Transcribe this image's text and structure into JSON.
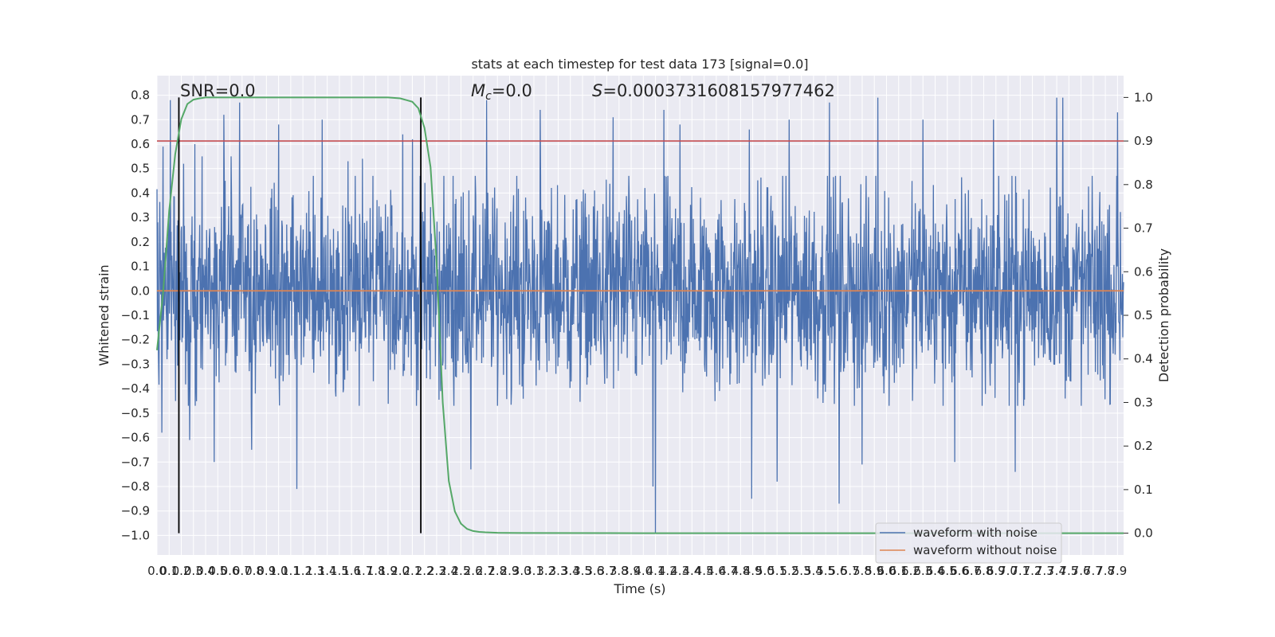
{
  "chart_data": {
    "type": "line",
    "title": "stats at each timestep for test data 173 [signal=0.0]",
    "xlabel": "Time (s)",
    "ylabel": "Whitened strain",
    "y2label": "Detection probability",
    "xlim": [
      0.0,
      7.95
    ],
    "ylim": [
      -1.08,
      0.88
    ],
    "y2lim": [
      -0.05,
      1.05
    ],
    "x_ticks": [
      "0.0",
      "0.1",
      "0.2",
      "0.3",
      "0.4",
      "0.5",
      "0.6",
      "0.7",
      "0.8",
      "0.9",
      "1.0",
      "1.1",
      "1.2",
      "1.3",
      "1.4",
      "1.5",
      "1.6",
      "1.7",
      "1.8",
      "1.9",
      "2.0",
      "2.1",
      "2.2",
      "2.3",
      "2.4",
      "2.5",
      "2.6",
      "2.7",
      "2.8",
      "2.9",
      "3.0",
      "3.1",
      "3.2",
      "3.3",
      "3.4",
      "3.5",
      "3.6",
      "3.7",
      "3.8",
      "3.9",
      "4.0",
      "4.1",
      "4.2",
      "4.3",
      "4.4",
      "4.5",
      "4.6",
      "4.7",
      "4.8",
      "4.9",
      "5.0",
      "5.1",
      "5.2",
      "5.3",
      "5.4",
      "5.5",
      "5.6",
      "5.7",
      "5.8",
      "5.9",
      "6.0",
      "6.1",
      "6.2",
      "6.3",
      "6.4",
      "6.5",
      "6.6",
      "6.7",
      "6.8",
      "6.9",
      "7.0",
      "7.1",
      "7.2",
      "7.3",
      "7.4",
      "7.5",
      "7.6",
      "7.7",
      "7.8",
      "7.9"
    ],
    "y_ticks": [
      "0.8",
      "0.7",
      "0.6",
      "0.5",
      "0.4",
      "0.3",
      "0.2",
      "0.1",
      "0.0",
      "−0.1",
      "−0.2",
      "−0.3",
      "−0.4",
      "−0.5",
      "−0.6",
      "−0.7",
      "−0.8",
      "−0.9",
      "−1.0"
    ],
    "y2_ticks": [
      "1.0",
      "0.9",
      "0.8",
      "0.7",
      "0.6",
      "0.5",
      "0.4",
      "0.3",
      "0.2",
      "0.1",
      "0.0"
    ],
    "annotations": {
      "snr": "SNR=0.0",
      "mc_symbol": "M",
      "mc_subscript": "c",
      "mc_value": "=0.0",
      "s_symbol": "S",
      "s_value": "=0.0003731608157977462"
    },
    "threshold": {
      "value": 0.9,
      "axis": "right",
      "color": "#c44e52"
    },
    "vertical_lines": [
      0.18,
      2.17
    ],
    "series": [
      {
        "name": "waveform with noise",
        "color": "#4c72b0",
        "description": "dense noise trace, bulk roughly within ±0.45, peaks to about ±0.8",
        "peaks": [
          [
            0.05,
            0.59
          ],
          [
            0.11,
            0.78
          ],
          [
            0.22,
            0.52
          ],
          [
            0.31,
            0.6
          ],
          [
            0.37,
            0.55
          ],
          [
            0.55,
            0.72
          ],
          [
            0.61,
            0.55
          ],
          [
            0.68,
            0.77
          ],
          [
            1.0,
            0.68
          ],
          [
            1.36,
            0.7
          ],
          [
            1.57,
            0.53
          ],
          [
            1.69,
            0.54
          ],
          [
            2.02,
            0.64
          ],
          [
            2.1,
            0.62
          ],
          [
            2.71,
            0.78
          ],
          [
            3.15,
            0.74
          ],
          [
            3.75,
            0.71
          ],
          [
            4.17,
            0.74
          ],
          [
            4.3,
            0.68
          ],
          [
            4.87,
            0.66
          ],
          [
            5.2,
            0.7
          ],
          [
            5.53,
            0.77
          ],
          [
            5.93,
            0.79
          ],
          [
            6.3,
            0.7
          ],
          [
            6.88,
            0.7
          ],
          [
            7.4,
            0.79
          ],
          [
            7.45,
            0.79
          ],
          [
            7.9,
            0.73
          ]
        ],
        "troughs": [
          [
            0.04,
            -0.58
          ],
          [
            0.27,
            -0.61
          ],
          [
            0.47,
            -0.7
          ],
          [
            0.78,
            -0.65
          ],
          [
            1.15,
            -0.81
          ],
          [
            2.58,
            -0.73
          ],
          [
            4.08,
            -0.8
          ],
          [
            4.1,
            -0.99
          ],
          [
            4.89,
            -0.85
          ],
          [
            5.1,
            -0.78
          ],
          [
            5.61,
            -0.87
          ],
          [
            5.8,
            -0.71
          ],
          [
            6.56,
            -0.7
          ],
          [
            7.06,
            -0.74
          ]
        ]
      },
      {
        "name": "waveform without noise",
        "color": "#dd8452",
        "x": [
          0.0,
          7.95
        ],
        "y": [
          0.0,
          0.0
        ]
      },
      {
        "name": "detection probability",
        "color": "#55a868",
        "axis": "right",
        "x": [
          0.0,
          0.05,
          0.1,
          0.15,
          0.2,
          0.25,
          0.3,
          0.35,
          0.4,
          0.45,
          0.5,
          0.8,
          1.2,
          1.6,
          1.9,
          2.0,
          2.1,
          2.15,
          2.2,
          2.25,
          2.3,
          2.35,
          2.4,
          2.45,
          2.5,
          2.55,
          2.6,
          2.65,
          2.7,
          2.8,
          3.0,
          4.0,
          6.0,
          7.95
        ],
        "y": [
          0.42,
          0.55,
          0.74,
          0.87,
          0.95,
          0.985,
          0.995,
          0.998,
          1.0,
          1.0,
          1.0,
          1.0,
          1.0,
          1.0,
          1.0,
          0.998,
          0.99,
          0.975,
          0.93,
          0.84,
          0.62,
          0.3,
          0.12,
          0.05,
          0.022,
          0.01,
          0.005,
          0.003,
          0.002,
          0.001,
          0.0005,
          0.0,
          0.0,
          0.0
        ]
      }
    ],
    "legend": {
      "location": "lower-right",
      "entries": [
        "waveform with noise",
        "waveform without noise"
      ]
    },
    "grid": true,
    "background_color": "#eaeaf2"
  }
}
